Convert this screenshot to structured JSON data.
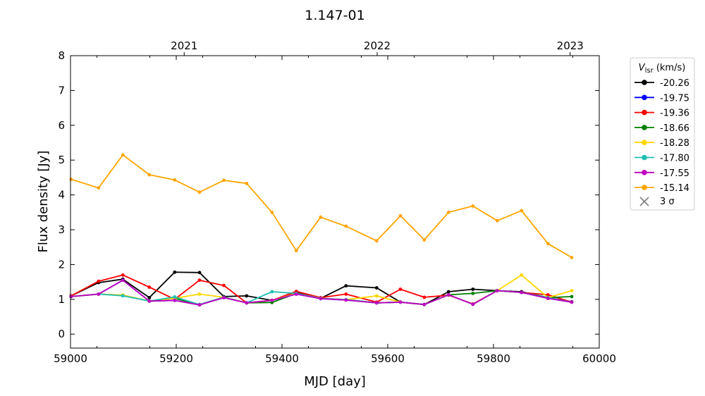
{
  "chart_data": {
    "type": "line",
    "title": "1.147-01",
    "xlabel": "MJD [day]",
    "ylabel": "Flux density [Jy]",
    "xlim": [
      59000,
      60000
    ],
    "ylim": [
      -0.4,
      8
    ],
    "xticks": [
      59000,
      59200,
      59400,
      59600,
      59800,
      60000
    ],
    "xtick_labels": [
      "59000",
      "59200",
      "59400",
      "59600",
      "59800",
      "60000"
    ],
    "yticks": [
      0,
      1,
      2,
      3,
      4,
      5,
      6,
      7,
      8
    ],
    "ytick_labels": [
      "0",
      "1",
      "2",
      "3",
      "4",
      "5",
      "6",
      "7",
      "8"
    ],
    "top_axis": {
      "ticks": [
        59215,
        59580,
        59945
      ],
      "labels": [
        "2021",
        "2022",
        "2023"
      ]
    },
    "grid": false,
    "legend": {
      "placement": "outside-right",
      "title_main": "V",
      "title_sub": "lsr",
      "title_rest": " (km/s)",
      "sigma_label": "3 σ"
    },
    "x": [
      59001,
      59053,
      59099,
      59149,
      59197,
      59244,
      59290,
      59333,
      59381,
      59427,
      59473,
      59521,
      59579,
      59624,
      59669,
      59715,
      59761,
      59807,
      59853,
      59903,
      59948
    ],
    "series": [
      {
        "name": "-20.26",
        "color": "#000000",
        "values": [
          1.1,
          1.48,
          1.58,
          1.05,
          1.78,
          1.77,
          1.08,
          1.1,
          0.97,
          1.2,
          1.03,
          1.39,
          1.33,
          0.92,
          0.85,
          1.22,
          1.29,
          1.25,
          1.22,
          1.05,
          0.93
        ]
      },
      {
        "name": "-19.75",
        "color": "#0000ff",
        "values": [
          1.08,
          1.15,
          1.55,
          0.95,
          0.97,
          0.84,
          1.05,
          0.9,
          0.97,
          1.15,
          1.02,
          0.98,
          0.9,
          0.92,
          0.85,
          1.13,
          0.86,
          1.25,
          1.2,
          1.03,
          0.92
        ]
      },
      {
        "name": "-19.36",
        "color": "#ff0000",
        "values": [
          1.1,
          1.52,
          1.7,
          1.35,
          1.0,
          1.55,
          1.4,
          0.9,
          0.97,
          1.23,
          1.05,
          1.15,
          0.92,
          1.29,
          1.06,
          1.12,
          0.87,
          1.25,
          1.2,
          1.13,
          0.92
        ]
      },
      {
        "name": "-18.66",
        "color": "#008000",
        "values": [
          1.08,
          1.15,
          1.12,
          0.95,
          1.03,
          0.85,
          1.06,
          0.9,
          0.91,
          1.17,
          1.03,
          0.99,
          0.9,
          0.92,
          0.85,
          1.13,
          1.17,
          1.25,
          1.2,
          1.05,
          1.08
        ]
      },
      {
        "name": "-18.28",
        "color": "#ffd700",
        "values": [
          1.08,
          1.15,
          1.12,
          0.95,
          1.03,
          1.15,
          1.06,
          0.9,
          0.97,
          1.17,
          1.03,
          0.99,
          1.1,
          0.92,
          0.85,
          1.13,
          0.86,
          1.25,
          1.7,
          1.05,
          1.25
        ]
      },
      {
        "name": "-17.80",
        "color": "#20c0b0",
        "values": [
          1.08,
          1.15,
          1.1,
          0.95,
          1.07,
          0.85,
          1.06,
          0.9,
          1.22,
          1.17,
          1.03,
          0.99,
          0.9,
          0.92,
          0.85,
          1.13,
          0.86,
          1.25,
          1.2,
          1.05,
          0.92
        ]
      },
      {
        "name": "-17.55",
        "color": "#c000c0",
        "values": [
          1.08,
          1.15,
          1.55,
          0.95,
          0.97,
          0.84,
          1.05,
          0.9,
          0.97,
          1.15,
          1.02,
          0.98,
          0.9,
          0.92,
          0.85,
          1.13,
          0.86,
          1.25,
          1.2,
          1.03,
          0.92
        ]
      },
      {
        "name": "-15.14",
        "color": "#ffa500",
        "values": [
          4.45,
          4.2,
          5.15,
          4.58,
          4.43,
          4.08,
          4.42,
          4.33,
          3.5,
          2.4,
          3.36,
          3.1,
          2.68,
          3.4,
          2.71,
          3.5,
          3.68,
          3.26,
          3.55,
          2.6,
          2.2
        ]
      }
    ]
  }
}
